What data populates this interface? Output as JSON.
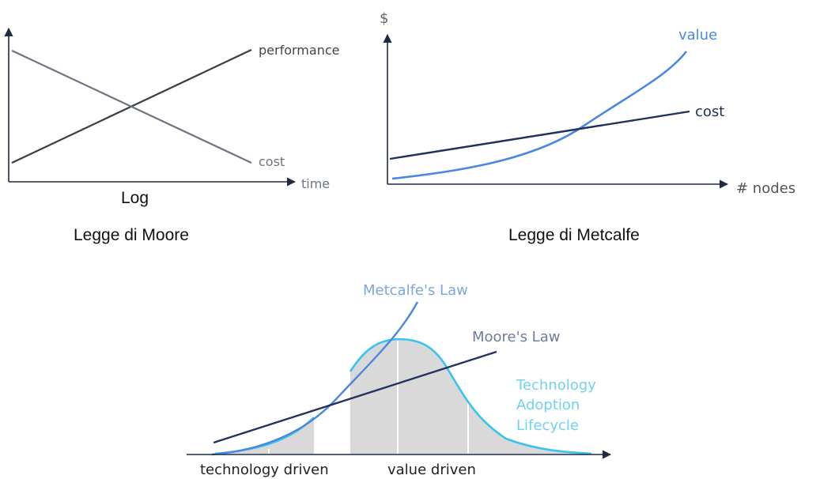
{
  "moore": {
    "series_labels": {
      "performance": "performance",
      "cost": "cost"
    },
    "x_axis_label": "time",
    "y_scale_label": "Log",
    "caption": "Legge di Moore"
  },
  "metcalfe": {
    "y_axis_label": "$",
    "x_axis_label": "# nodes",
    "series_labels": {
      "value": "value",
      "cost": "cost"
    },
    "caption": "Legge di Metcalfe"
  },
  "lifecycle": {
    "curve_labels": {
      "metcalfe": "Metcalfe's Law",
      "moore": "Moore's Law",
      "adoption_line1": "Technology",
      "adoption_line2": "Adoption",
      "adoption_line3": "Lifecycle"
    },
    "phase_labels": {
      "technology": "technology driven",
      "value": "value driven"
    }
  },
  "colors": {
    "axis": "#1f2a44",
    "moore_performance": "#3a3d42",
    "moore_cost": "#6d7580",
    "metcalfe_value": "#4a88e0",
    "metcalfe_cost": "#1f3157",
    "metcalfe_value_label": "#4a88e0",
    "metcalfe_cost_label": "#1f3157",
    "lifecycle_fill": "#d9d9d9",
    "lifecycle_curve": "#38c4ec",
    "lifecycle_moore": "#23345a",
    "lifecycle_metcalfe": "#4a88e0",
    "label_metcalfe": "#7fa6dc",
    "label_moore": "#6b7d99",
    "label_adoption": "#6fd2ee",
    "text_dark": "#222222"
  }
}
